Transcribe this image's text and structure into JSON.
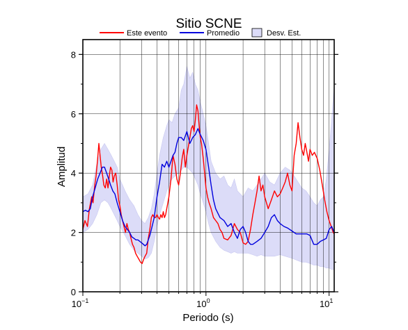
{
  "chart_data": {
    "type": "line",
    "title": "Sitio SCNE",
    "xlabel": "Periodo (s)",
    "ylabel": "Amplitud",
    "xscale": "log",
    "xlim": [
      0.1,
      11
    ],
    "ylim": [
      0,
      8.5
    ],
    "x_ticks": [
      {
        "base": "10",
        "exp": "−1",
        "value": 0.1
      },
      {
        "base": "10",
        "exp": "0",
        "value": 1
      },
      {
        "base": "10",
        "exp": "1",
        "value": 10
      }
    ],
    "y_ticks": [
      0,
      2,
      4,
      6,
      8
    ],
    "grid": true,
    "legend_position": "top",
    "legend": {
      "este_evento": "Este evento",
      "promedio": "Promedio",
      "desv_est": "Desv. Est."
    },
    "colors": {
      "este_evento": "#ff0000",
      "promedio": "#0000dd",
      "band_fill": "#dcdcf8",
      "band_stroke": "#c8c8f0"
    },
    "series": [
      {
        "name": "Este evento",
        "x": [
          0.1,
          0.104,
          0.109,
          0.113,
          0.118,
          0.121,
          0.125,
          0.128,
          0.132,
          0.135,
          0.138,
          0.141,
          0.145,
          0.148,
          0.152,
          0.156,
          0.16,
          0.164,
          0.168,
          0.172,
          0.176,
          0.18,
          0.185,
          0.19,
          0.195,
          0.2,
          0.205,
          0.21,
          0.216,
          0.222,
          0.228,
          0.234,
          0.24,
          0.246,
          0.253,
          0.26,
          0.268,
          0.276,
          0.285,
          0.294,
          0.303,
          0.312,
          0.32,
          0.33,
          0.34,
          0.35,
          0.36,
          0.37,
          0.38,
          0.39,
          0.4,
          0.41,
          0.42,
          0.43,
          0.44,
          0.45,
          0.46,
          0.47,
          0.48,
          0.49,
          0.5,
          0.52,
          0.54,
          0.56,
          0.58,
          0.6,
          0.62,
          0.64,
          0.66,
          0.68,
          0.7,
          0.72,
          0.74,
          0.76,
          0.78,
          0.8,
          0.82,
          0.84,
          0.86,
          0.88,
          0.9,
          0.92,
          0.95,
          0.98,
          1.0,
          1.03,
          1.06,
          1.1,
          1.15,
          1.2,
          1.25,
          1.3,
          1.35,
          1.4,
          1.5,
          1.6,
          1.7,
          1.8,
          1.9,
          2.0,
          2.1,
          2.2,
          2.3,
          2.4,
          2.5,
          2.6,
          2.7,
          2.8,
          2.9,
          3.0,
          3.2,
          3.4,
          3.6,
          3.8,
          4.0,
          4.2,
          4.4,
          4.6,
          4.8,
          5.0,
          5.2,
          5.4,
          5.6,
          5.8,
          6.0,
          6.2,
          6.4,
          6.6,
          6.8,
          7.0,
          7.3,
          7.6,
          8.0,
          8.4,
          8.8,
          9.2,
          9.6,
          10.0,
          10.4,
          10.8,
          11.0
        ],
        "values": [
          2.1,
          2.4,
          2.2,
          2.8,
          3.2,
          3.0,
          3.6,
          3.9,
          4.5,
          5.0,
          4.6,
          4.2,
          3.9,
          3.6,
          3.5,
          3.8,
          3.5,
          3.9,
          4.2,
          4.1,
          3.7,
          3.9,
          4.0,
          3.6,
          3.1,
          2.9,
          2.6,
          2.4,
          2.2,
          2.0,
          2.3,
          2.1,
          2.0,
          1.8,
          1.6,
          1.5,
          1.3,
          1.2,
          1.1,
          1.0,
          0.95,
          1.1,
          1.2,
          1.3,
          1.8,
          2.1,
          2.5,
          2.6,
          2.5,
          2.5,
          2.6,
          2.5,
          2.45,
          2.6,
          2.5,
          2.7,
          2.5,
          2.6,
          2.8,
          3.0,
          3.2,
          3.8,
          4.6,
          4.3,
          3.8,
          3.6,
          4.0,
          4.5,
          4.8,
          4.2,
          4.6,
          4.9,
          5.2,
          5.5,
          5.6,
          5.4,
          5.8,
          6.3,
          6.1,
          5.6,
          5.2,
          5.0,
          4.5,
          3.9,
          3.5,
          3.2,
          3.0,
          2.8,
          2.5,
          2.4,
          2.3,
          2.1,
          2.0,
          1.8,
          1.75,
          1.9,
          2.3,
          2.1,
          2.0,
          1.65,
          1.6,
          1.7,
          2.1,
          2.6,
          3.0,
          3.4,
          3.9,
          3.4,
          3.6,
          3.2,
          2.8,
          3.1,
          3.4,
          3.2,
          3.3,
          3.5,
          3.7,
          4.0,
          3.6,
          3.4,
          4.6,
          5.0,
          5.7,
          5.2,
          4.8,
          4.6,
          5.0,
          4.7,
          4.4,
          4.8,
          4.6,
          4.7,
          4.5,
          4.1,
          3.6,
          3.1,
          2.7,
          2.4,
          2.2,
          2.0,
          1.95
        ]
      },
      {
        "name": "Promedio",
        "x": [
          0.1,
          0.105,
          0.11,
          0.115,
          0.12,
          0.126,
          0.132,
          0.138,
          0.144,
          0.15,
          0.156,
          0.162,
          0.168,
          0.175,
          0.182,
          0.19,
          0.2,
          0.21,
          0.22,
          0.23,
          0.24,
          0.25,
          0.26,
          0.27,
          0.28,
          0.29,
          0.3,
          0.31,
          0.32,
          0.33,
          0.34,
          0.35,
          0.36,
          0.38,
          0.4,
          0.42,
          0.44,
          0.46,
          0.48,
          0.5,
          0.52,
          0.54,
          0.56,
          0.58,
          0.6,
          0.63,
          0.66,
          0.7,
          0.74,
          0.78,
          0.82,
          0.86,
          0.9,
          0.95,
          1.0,
          1.05,
          1.1,
          1.15,
          1.2,
          1.3,
          1.4,
          1.5,
          1.6,
          1.7,
          1.8,
          1.9,
          2.0,
          2.1,
          2.2,
          2.3,
          2.4,
          2.6,
          2.8,
          3.0,
          3.2,
          3.4,
          3.6,
          3.8,
          4.0,
          4.3,
          4.6,
          5.0,
          5.4,
          5.8,
          6.2,
          6.6,
          7.0,
          7.5,
          8.0,
          8.5,
          9.0,
          9.5,
          10.0,
          10.5,
          11.0
        ],
        "values": [
          2.7,
          2.75,
          2.7,
          2.8,
          3.2,
          3.5,
          3.8,
          4.0,
          4.2,
          4.2,
          4.0,
          3.8,
          3.6,
          3.4,
          3.3,
          3.0,
          2.7,
          2.4,
          2.2,
          2.1,
          2.0,
          1.85,
          1.8,
          1.75,
          1.75,
          1.7,
          1.65,
          1.6,
          1.55,
          1.6,
          1.75,
          1.9,
          2.1,
          2.5,
          3.2,
          3.7,
          4.3,
          4.2,
          4.4,
          4.2,
          4.4,
          4.6,
          4.7,
          5.0,
          5.2,
          5.2,
          5.1,
          5.4,
          5.0,
          5.2,
          5.3,
          5.5,
          5.3,
          5.1,
          4.8,
          4.2,
          3.6,
          3.1,
          2.8,
          2.5,
          2.4,
          2.2,
          2.3,
          2.0,
          1.8,
          2.1,
          2.2,
          2.0,
          1.7,
          1.6,
          1.6,
          1.7,
          1.8,
          2.0,
          2.2,
          2.5,
          2.6,
          2.4,
          2.3,
          2.2,
          2.15,
          2.05,
          1.95,
          1.95,
          1.95,
          1.95,
          1.9,
          1.6,
          1.6,
          1.7,
          1.75,
          1.8,
          2.1,
          2.2,
          2.0
        ]
      }
    ],
    "band": {
      "name": "Desv. Est.",
      "x": [
        0.1,
        0.11,
        0.12,
        0.13,
        0.14,
        0.15,
        0.16,
        0.17,
        0.18,
        0.19,
        0.2,
        0.22,
        0.24,
        0.26,
        0.28,
        0.3,
        0.32,
        0.34,
        0.36,
        0.38,
        0.4,
        0.42,
        0.45,
        0.48,
        0.5,
        0.53,
        0.56,
        0.6,
        0.63,
        0.66,
        0.7,
        0.74,
        0.78,
        0.82,
        0.86,
        0.9,
        0.95,
        1.0,
        1.05,
        1.1,
        1.2,
        1.3,
        1.4,
        1.5,
        1.6,
        1.7,
        1.8,
        2.0,
        2.2,
        2.4,
        2.6,
        2.8,
        3.0,
        3.3,
        3.6,
        4.0,
        4.4,
        4.8,
        5.2,
        5.6,
        6.0,
        6.5,
        7.0,
        7.5,
        8.0,
        8.5,
        9.0,
        9.5,
        10.0,
        10.5,
        11.0
      ],
      "upper": [
        3.2,
        3.3,
        3.6,
        4.3,
        4.8,
        5.0,
        4.8,
        4.6,
        4.4,
        4.2,
        3.8,
        3.4,
        3.1,
        2.9,
        2.6,
        2.4,
        2.3,
        2.5,
        2.8,
        3.3,
        4.0,
        4.6,
        5.2,
        5.6,
        5.8,
        5.7,
        6.0,
        6.2,
        6.8,
        7.0,
        7.6,
        7.2,
        7.4,
        7.0,
        6.8,
        6.4,
        6.0,
        5.6,
        5.0,
        4.4,
        4.0,
        3.8,
        3.9,
        3.6,
        3.5,
        3.8,
        3.4,
        3.2,
        3.5,
        3.4,
        3.6,
        3.8,
        4.0,
        3.7,
        3.6,
        4.0,
        4.2,
        4.1,
        3.9,
        3.7,
        3.5,
        3.4,
        3.2,
        3.0,
        2.9,
        3.1,
        3.2,
        3.8,
        4.8,
        5.8,
        7.0
      ],
      "lower": [
        2.0,
        2.1,
        2.3,
        2.6,
        3.0,
        3.1,
        3.0,
        2.8,
        2.6,
        2.4,
        2.2,
        1.9,
        1.6,
        1.4,
        1.3,
        1.2,
        1.1,
        1.15,
        1.3,
        1.7,
        2.2,
        2.6,
        3.0,
        3.4,
        3.6,
        3.8,
        3.9,
        4.0,
        4.1,
        4.2,
        4.2,
        4.1,
        4.0,
        3.8,
        3.6,
        3.3,
        3.0,
        2.7,
        2.3,
        2.0,
        1.7,
        1.5,
        1.4,
        1.35,
        1.3,
        1.35,
        1.3,
        1.3,
        1.3,
        1.25,
        1.2,
        1.25,
        1.2,
        1.2,
        1.2,
        1.25,
        1.2,
        1.15,
        1.1,
        1.05,
        1.0,
        1.0,
        0.95,
        0.9,
        0.9,
        0.85,
        0.85,
        0.8,
        0.8,
        0.75,
        0.75
      ]
    }
  }
}
